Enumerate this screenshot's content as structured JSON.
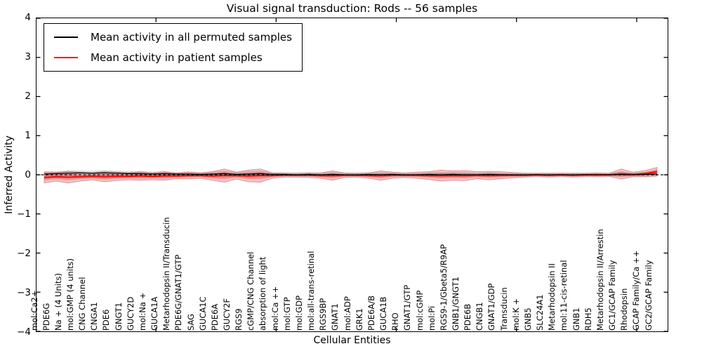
{
  "title": "Visual signal transduction: Rods -- 56 samples",
  "legend": {
    "items": [
      {
        "label": "Mean activity in all permuted samples",
        "color": "#000000"
      },
      {
        "label": "Mean activity in patient samples",
        "color": "#ff0000"
      }
    ]
  },
  "colors": {
    "patient_line": "#ff0000",
    "permuted_line": "#000000",
    "patient_band": "#cc2222",
    "permuted_band": "#888888",
    "zero_line": "#000000"
  },
  "chart_data": {
    "type": "line",
    "title": "Visual signal transduction: Rods -- 56 samples",
    "xlabel": "Cellular Entities",
    "ylabel": "Inferred Activity",
    "ylim": [
      -4,
      4
    ],
    "ytick_labels": [
      "4",
      "3",
      "2",
      "1",
      "0",
      "−1",
      "−2",
      "−3",
      "−4"
    ],
    "ytick_values": [
      4,
      3,
      2,
      1,
      0,
      -1,
      -2,
      -3,
      -4
    ],
    "xtick_indices": [
      10,
      20,
      30,
      40,
      50
    ],
    "legend_position": "upper left",
    "grid": false,
    "categories": [
      "mol:Ca2+",
      "PDE6G",
      "Na + (4 Units)",
      "mol:GMP (4 units)",
      "CNG Channel",
      "CNGA1",
      "PDE6",
      "GNGT1",
      "GUCY2D",
      "mol:Na +",
      "GUCA1A",
      "Metarhodopsin II/Transducin",
      "PDE6G/GNAT1/GTP",
      "SAG",
      "GUCA1C",
      "PDE6A",
      "GUCY2F",
      "RGS9",
      "cGMP/CNG Channel",
      "absorption of light",
      "mol:Ca ++",
      "mol:GTP",
      "mol:GDP",
      "mol:all-trans-retinal",
      "RGS9BP",
      "GNAT1",
      "mol:ADP",
      "GRK1",
      "PDE6A/B",
      "GUCA1B",
      "RHO",
      "GNAT1/GTP",
      "mol:cGMP",
      "mol:Pi",
      "RGS9-1/Gbeta5/R9AP",
      "GNB1/GNGT1",
      "PDE6B",
      "CNGB1",
      "GNAT1/GDP",
      "Transducin",
      "mol:K +",
      "GNB5",
      "SLC24A1",
      "Metarhodopsin II",
      "mol:11-cis-retinal",
      "GNB1",
      "RDH5",
      "Metarhodopsin II/Arrestin",
      "GC1/GCAP Family",
      "Rhodopsin",
      "GCAP Family/Ca ++",
      "GC2/GCAP Family"
    ],
    "series": [
      {
        "name": "Mean activity in all permuted samples",
        "color": "#000000",
        "values": [
          0.02,
          0.03,
          0.04,
          0.05,
          0.04,
          0.05,
          0.04,
          0.03,
          0.03,
          0.02,
          0.03,
          0.02,
          0.02,
          0.01,
          0.02,
          0.03,
          0.01,
          0.02,
          0.03,
          0.01,
          0.01,
          0.0,
          0.01,
          0.0,
          0.01,
          0.0,
          0.0,
          0.01,
          0.0,
          0.01,
          0.0,
          0.0,
          0.01,
          0.0,
          0.01,
          0.0,
          0.0,
          0.01,
          0.0,
          0.0,
          0.0,
          0.0,
          0.0,
          0.0,
          0.0,
          0.0,
          0.0,
          0.0,
          0.01,
          0.0,
          0.01,
          0.02
        ],
        "band_half_widths": [
          0.07,
          0.06,
          0.07,
          0.06,
          0.06,
          0.07,
          0.06,
          0.06,
          0.06,
          0.06,
          0.06,
          0.05,
          0.06,
          0.05,
          0.06,
          0.07,
          0.06,
          0.07,
          0.07,
          0.05,
          0.05,
          0.05,
          0.05,
          0.05,
          0.06,
          0.05,
          0.05,
          0.05,
          0.06,
          0.05,
          0.05,
          0.05,
          0.06,
          0.06,
          0.06,
          0.06,
          0.05,
          0.06,
          0.05,
          0.05,
          0.05,
          0.05,
          0.05,
          0.05,
          0.05,
          0.05,
          0.05,
          0.05,
          0.06,
          0.05,
          0.06,
          0.07
        ]
      },
      {
        "name": "Mean activity in patient samples",
        "color": "#ff0000",
        "values": [
          -0.07,
          -0.05,
          -0.06,
          -0.05,
          -0.04,
          -0.05,
          -0.04,
          -0.04,
          -0.03,
          -0.04,
          -0.03,
          -0.03,
          -0.02,
          -0.02,
          -0.03,
          -0.02,
          -0.02,
          -0.03,
          -0.02,
          -0.02,
          -0.01,
          -0.01,
          -0.01,
          -0.02,
          -0.02,
          -0.01,
          -0.01,
          -0.02,
          -0.02,
          -0.01,
          -0.01,
          -0.01,
          -0.02,
          -0.02,
          -0.02,
          -0.02,
          -0.01,
          -0.02,
          -0.01,
          -0.01,
          -0.01,
          0.0,
          -0.01,
          0.0,
          -0.01,
          0.0,
          0.0,
          0.0,
          0.02,
          0.01,
          0.03,
          0.08
        ],
        "band_half_widths": [
          0.14,
          0.11,
          0.15,
          0.11,
          0.09,
          0.13,
          0.11,
          0.09,
          0.11,
          0.09,
          0.11,
          0.07,
          0.09,
          0.07,
          0.11,
          0.17,
          0.09,
          0.15,
          0.17,
          0.07,
          0.05,
          0.05,
          0.06,
          0.07,
          0.12,
          0.06,
          0.05,
          0.07,
          0.12,
          0.08,
          0.06,
          0.08,
          0.1,
          0.14,
          0.12,
          0.13,
          0.09,
          0.11,
          0.09,
          0.07,
          0.05,
          0.04,
          0.05,
          0.04,
          0.05,
          0.04,
          0.05,
          0.04,
          0.13,
          0.06,
          0.08,
          0.11
        ]
      }
    ],
    "zero_line": {
      "value": 0,
      "style": "dashed",
      "color": "#000000"
    }
  }
}
